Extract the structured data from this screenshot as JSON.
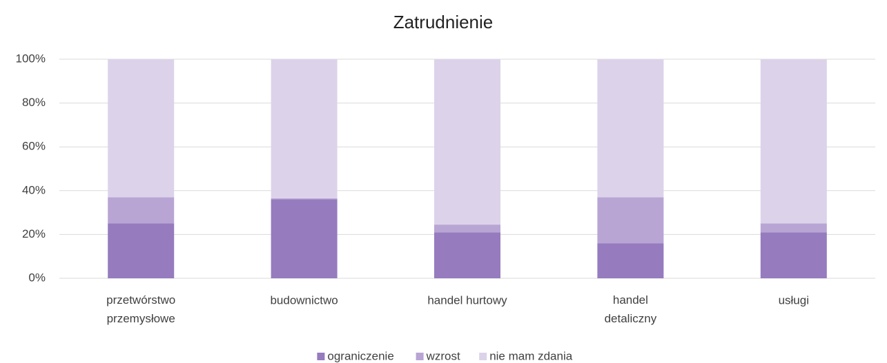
{
  "chart_data": {
    "type": "stacked_bar",
    "title": "Zatrudnienie",
    "categories": [
      "przetwórstwo przemysłowe",
      "budownictwo",
      "handel hurtowy",
      "handel detaliczny",
      "usługi"
    ],
    "series": [
      {
        "name": "ograniczenie",
        "color": "#967bbf",
        "values": [
          25,
          36,
          21,
          16,
          21
        ]
      },
      {
        "name": "wzrost",
        "color": "#b8a5d4",
        "values": [
          12,
          0.5,
          3.5,
          21,
          4
        ]
      },
      {
        "name": "nie mam zdania",
        "color": "#dcd3ea",
        "values": [
          63,
          63.5,
          75.5,
          63,
          75
        ]
      }
    ],
    "ylim": [
      0,
      100
    ],
    "yticks": [
      {
        "value": 0,
        "label": "0%"
      },
      {
        "value": 20,
        "label": "20%"
      },
      {
        "value": 40,
        "label": "40%"
      },
      {
        "value": 60,
        "label": "60%"
      },
      {
        "value": 80,
        "label": "80%"
      },
      {
        "value": 100,
        "label": "100%"
      }
    ],
    "grid": true,
    "legend": "bottom"
  }
}
